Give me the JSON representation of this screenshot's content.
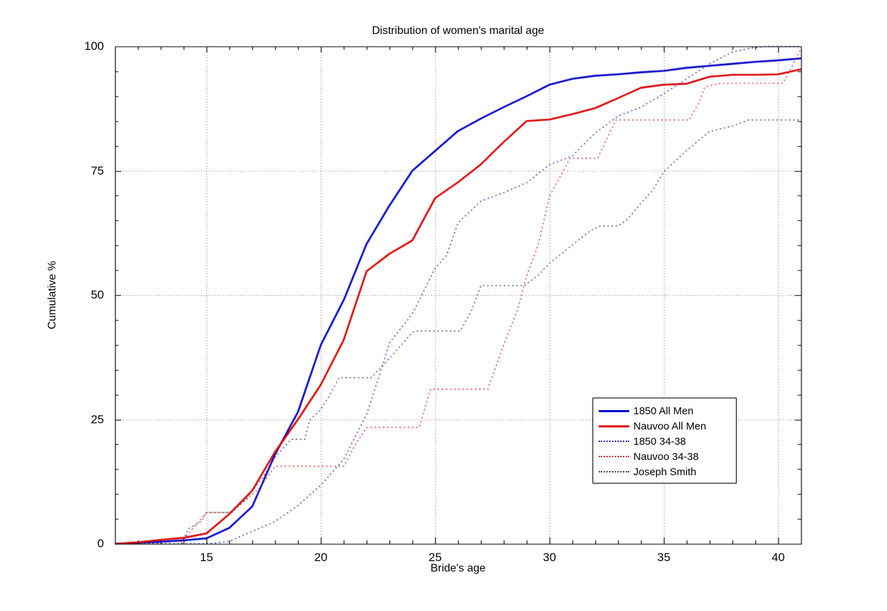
{
  "title": "Distribution of women's marital age",
  "axes": {
    "xlabel": "Bride's age",
    "ylabel": "Cumulative %",
    "x_ticks": [
      "15",
      "20",
      "25",
      "30",
      "35",
      "40"
    ],
    "y_ticks": [
      "0",
      "25",
      "50",
      "75",
      "100"
    ]
  },
  "legend": {
    "position": "lower-right-inside"
  },
  "chart_data": {
    "type": "line",
    "title": "Distribution of women's marital age",
    "xlabel": "Bride's age",
    "ylabel": "Cumulative %",
    "xlim": [
      11,
      41
    ],
    "ylim": [
      0,
      100
    ],
    "x_major_ticks": [
      15,
      20,
      25,
      30,
      35,
      40
    ],
    "y_major_ticks": [
      0,
      25,
      50,
      75,
      100
    ],
    "x_minor_step": 1,
    "y_minor_step": 5,
    "grid": true,
    "grid_color": "#666666",
    "legend_position": "lower right",
    "series": [
      {
        "name": "1850 All Men",
        "color": "#0000cc",
        "style": "solid",
        "width": 2.6,
        "points": [
          [
            11,
            0
          ],
          [
            12,
            0.2
          ],
          [
            13,
            0.4
          ],
          [
            14,
            0.7
          ],
          [
            15,
            1.1
          ],
          [
            16,
            3.2
          ],
          [
            17,
            7.5
          ],
          [
            18,
            18
          ],
          [
            19,
            26.5
          ],
          [
            20,
            40
          ],
          [
            21,
            49
          ],
          [
            22,
            60.3
          ],
          [
            23,
            68
          ],
          [
            24,
            75
          ],
          [
            25,
            79
          ],
          [
            26,
            83
          ],
          [
            27,
            85.5
          ],
          [
            28,
            87.8
          ],
          [
            29,
            90
          ],
          [
            30,
            92.3
          ],
          [
            31,
            93.5
          ],
          [
            32,
            94.1
          ],
          [
            33,
            94.4
          ],
          [
            34,
            94.8
          ],
          [
            35,
            95.1
          ],
          [
            36,
            95.7
          ],
          [
            37,
            96.1
          ],
          [
            38,
            96.5
          ],
          [
            39,
            96.9
          ],
          [
            40,
            97.2
          ],
          [
            41,
            97.6
          ]
        ]
      },
      {
        "name": "Nauvoo All Men",
        "color": "#dd0000",
        "style": "solid",
        "width": 2.6,
        "points": [
          [
            11,
            0
          ],
          [
            12,
            0.3
          ],
          [
            13,
            0.8
          ],
          [
            14,
            1.2
          ],
          [
            15,
            2.1
          ],
          [
            16,
            6
          ],
          [
            17,
            10.7
          ],
          [
            18,
            18.5
          ],
          [
            19,
            25
          ],
          [
            20,
            32
          ],
          [
            21,
            41
          ],
          [
            22,
            54.8
          ],
          [
            23,
            58.3
          ],
          [
            24,
            61
          ],
          [
            25,
            69.5
          ],
          [
            26,
            72.7
          ],
          [
            27,
            76.3
          ],
          [
            28,
            80.8
          ],
          [
            29,
            85
          ],
          [
            30,
            85.3
          ],
          [
            31,
            86.4
          ],
          [
            32,
            87.6
          ],
          [
            33,
            89.6
          ],
          [
            34,
            91.7
          ],
          [
            35,
            92.3
          ],
          [
            36,
            92.5
          ],
          [
            37,
            93.9
          ],
          [
            38,
            94.3
          ],
          [
            39,
            94.3
          ],
          [
            40,
            94.4
          ],
          [
            41,
            95.4
          ]
        ]
      },
      {
        "name": "1850 34-38",
        "color": "#2222bb",
        "style": "dotted",
        "width": 1.4,
        "points": [
          [
            11,
            0
          ],
          [
            15,
            0
          ],
          [
            16,
            0.5
          ],
          [
            17,
            2.5
          ],
          [
            18,
            4.5
          ],
          [
            19,
            7.7
          ],
          [
            20,
            11.8
          ],
          [
            21,
            17
          ],
          [
            22,
            26
          ],
          [
            22.5,
            33
          ],
          [
            23,
            40.4
          ],
          [
            24,
            46.2
          ],
          [
            24.5,
            50.8
          ],
          [
            25,
            55.4
          ],
          [
            25.5,
            58
          ],
          [
            26,
            64.5
          ],
          [
            27,
            68.9
          ],
          [
            28,
            70.6
          ],
          [
            29,
            72.6
          ],
          [
            30,
            76.2
          ],
          [
            31,
            78
          ],
          [
            32,
            82.6
          ],
          [
            33,
            86
          ],
          [
            34,
            87.8
          ],
          [
            35,
            90.5
          ],
          [
            36,
            93.5
          ],
          [
            36.3,
            94.4
          ],
          [
            37,
            96.5
          ],
          [
            38,
            98.9
          ],
          [
            39,
            99.8
          ],
          [
            39.5,
            100
          ],
          [
            41,
            100
          ]
        ]
      },
      {
        "name": "Nauvoo 34-38",
        "color": "#cc2222",
        "style": "dotted",
        "width": 1.4,
        "points": [
          [
            11,
            0
          ],
          [
            13.8,
            0
          ],
          [
            14.2,
            2
          ],
          [
            15,
            6.3
          ],
          [
            16,
            6.3
          ],
          [
            16.5,
            8
          ],
          [
            17.3,
            11.1
          ],
          [
            18,
            15.6
          ],
          [
            21,
            15.6
          ],
          [
            21.5,
            19.9
          ],
          [
            22,
            23.4
          ],
          [
            24.3,
            23.4
          ],
          [
            24.8,
            31.1
          ],
          [
            27.3,
            31.1
          ],
          [
            28,
            40.1
          ],
          [
            28.6,
            47
          ],
          [
            29,
            53.9
          ],
          [
            29.5,
            60
          ],
          [
            30,
            69.9
          ],
          [
            30.9,
            77.5
          ],
          [
            32.1,
            77.5
          ],
          [
            32.9,
            85.2
          ],
          [
            36.1,
            85.2
          ],
          [
            36.5,
            88.4
          ],
          [
            36.8,
            91.9
          ],
          [
            37.5,
            92.6
          ],
          [
            40.2,
            92.6
          ],
          [
            40.6,
            96
          ],
          [
            41,
            99.6
          ]
        ]
      },
      {
        "name": "Joseph Smith",
        "color": "#3c3c50",
        "style": "dotted",
        "width": 1.4,
        "points": [
          [
            11,
            0
          ],
          [
            13.9,
            0
          ],
          [
            14.2,
            3
          ],
          [
            14.8,
            4.6
          ],
          [
            15,
            6.3
          ],
          [
            16.1,
            6.3
          ],
          [
            16.7,
            8.8
          ],
          [
            17.2,
            11.8
          ],
          [
            17.5,
            13.6
          ],
          [
            18,
            17.4
          ],
          [
            18.7,
            21
          ],
          [
            19.3,
            21
          ],
          [
            19.5,
            24.8
          ],
          [
            20,
            27
          ],
          [
            20.4,
            30
          ],
          [
            20.8,
            33.4
          ],
          [
            22.2,
            33.4
          ],
          [
            23,
            37.3
          ],
          [
            24,
            42.5
          ],
          [
            24.2,
            42.8
          ],
          [
            26.1,
            42.8
          ],
          [
            26.6,
            47
          ],
          [
            27,
            51.9
          ],
          [
            28.9,
            51.9
          ],
          [
            29.5,
            54
          ],
          [
            30,
            56.4
          ],
          [
            31,
            60.1
          ],
          [
            31.8,
            63
          ],
          [
            32.2,
            63.9
          ],
          [
            33,
            63.9
          ],
          [
            33.4,
            65.2
          ],
          [
            34,
            68.5
          ],
          [
            34.5,
            71
          ],
          [
            35,
            74.8
          ],
          [
            36,
            79.1
          ],
          [
            37,
            82.9
          ],
          [
            38,
            84
          ],
          [
            38.7,
            85.2
          ],
          [
            41,
            85.2
          ]
        ]
      }
    ]
  }
}
